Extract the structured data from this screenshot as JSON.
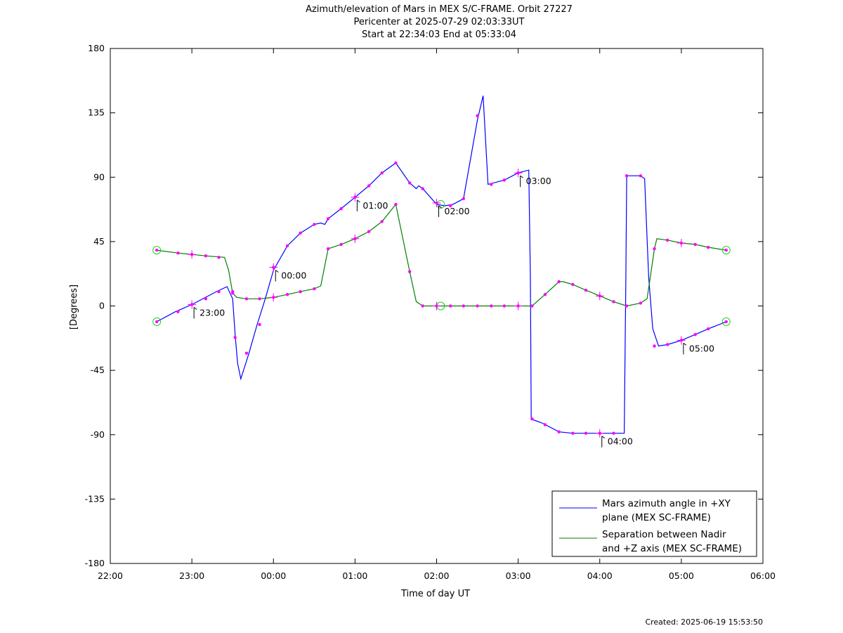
{
  "title_lines": [
    "Azimuth/elevation of Mars in MEX S/C-FRAME.  Orbit 27227",
    "Pericenter at 2025-07-29 02:03:33UT",
    "Start at 22:34:03 End at 05:33:04"
  ],
  "created": "Created: 2025-06-19 15:53:50",
  "chart_data": {
    "type": "line",
    "xlabel": "Time of day UT",
    "ylabel": "[Degrees]",
    "x_unit": "hours since 22:00 UT",
    "xlim": [
      0,
      8
    ],
    "ylim": [
      -180,
      180
    ],
    "x_ticks": [
      0,
      1,
      2,
      3,
      4,
      5,
      6,
      7,
      8
    ],
    "x_tick_labels": [
      "22:00",
      "23:00",
      "00:00",
      "01:00",
      "02:00",
      "03:00",
      "04:00",
      "05:00",
      "06:00"
    ],
    "y_ticks": [
      -180,
      -135,
      -90,
      -45,
      0,
      45,
      90,
      135,
      180
    ],
    "y_tick_labels": [
      "-180",
      "-135",
      "-90",
      "-45",
      "0",
      "45",
      "90",
      "135",
      "180"
    ],
    "grid": false,
    "legend_position": "bottom-right",
    "series": [
      {
        "name": "Mars azimuth angle in +XY plane (MEX SC-FRAME)",
        "legend_lines": [
          "Mars azimuth angle in +XY",
          "plane (MEX SC-FRAME)"
        ],
        "color": "#0000ff",
        "points": [
          [
            0.57,
            -11
          ],
          [
            0.8,
            -4
          ],
          [
            1.0,
            1
          ],
          [
            1.3,
            10
          ],
          [
            1.43,
            13.5
          ],
          [
            1.5,
            5
          ],
          [
            1.53,
            -20
          ],
          [
            1.56,
            -40
          ],
          [
            1.6,
            -51
          ],
          [
            1.7,
            -33
          ],
          [
            1.8,
            -13
          ],
          [
            1.9,
            5
          ],
          [
            2.0,
            25
          ],
          [
            2.17,
            42
          ],
          [
            2.33,
            51
          ],
          [
            2.5,
            57
          ],
          [
            2.58,
            58
          ],
          [
            2.63,
            57
          ],
          [
            2.67,
            61
          ],
          [
            2.83,
            68
          ],
          [
            3.0,
            76
          ],
          [
            3.17,
            84
          ],
          [
            3.33,
            93
          ],
          [
            3.5,
            100
          ],
          [
            3.67,
            86
          ],
          [
            3.75,
            82
          ],
          [
            3.78,
            84
          ],
          [
            3.83,
            82
          ],
          [
            4.0,
            71
          ],
          [
            4.1,
            70
          ],
          [
            4.2,
            71
          ],
          [
            4.33,
            75
          ],
          [
            4.5,
            130
          ],
          [
            4.57,
            147
          ],
          [
            4.63,
            85
          ],
          [
            4.83,
            88
          ],
          [
            5.0,
            93
          ],
          [
            5.13,
            95
          ],
          [
            5.15,
            20
          ],
          [
            5.16,
            -79
          ],
          [
            5.3,
            -82
          ],
          [
            5.5,
            -88
          ],
          [
            5.67,
            -89
          ],
          [
            5.83,
            -89
          ],
          [
            6.0,
            -89
          ],
          [
            6.17,
            -89
          ],
          [
            6.3,
            -89
          ],
          [
            6.32,
            20
          ],
          [
            6.33,
            91
          ],
          [
            6.5,
            91
          ],
          [
            6.55,
            89
          ],
          [
            6.6,
            20
          ],
          [
            6.65,
            -16
          ],
          [
            6.72,
            -28
          ],
          [
            6.83,
            -27
          ],
          [
            7.0,
            -24
          ],
          [
            7.17,
            -20
          ],
          [
            7.33,
            -16
          ],
          [
            7.55,
            -11
          ]
        ],
        "markers": [
          [
            0.57,
            -11
          ],
          [
            0.83,
            -4
          ],
          [
            1.0,
            1
          ],
          [
            1.17,
            5
          ],
          [
            1.33,
            10
          ],
          [
            1.5,
            10
          ],
          [
            1.53,
            -22
          ],
          [
            1.67,
            -33
          ],
          [
            1.83,
            -13
          ],
          [
            2.0,
            27
          ],
          [
            2.17,
            42
          ],
          [
            2.33,
            51
          ],
          [
            2.5,
            57
          ],
          [
            2.67,
            61
          ],
          [
            2.83,
            68
          ],
          [
            3.0,
            76
          ],
          [
            3.17,
            84
          ],
          [
            3.33,
            93
          ],
          [
            3.5,
            100
          ],
          [
            3.67,
            86
          ],
          [
            3.83,
            82
          ],
          [
            4.0,
            72
          ],
          [
            4.17,
            70
          ],
          [
            4.33,
            75
          ],
          [
            4.5,
            133
          ],
          [
            4.67,
            85
          ],
          [
            4.83,
            88
          ],
          [
            5.0,
            93
          ],
          [
            5.17,
            -79
          ],
          [
            5.33,
            -83
          ],
          [
            5.5,
            -88
          ],
          [
            5.67,
            -89
          ],
          [
            5.83,
            -89
          ],
          [
            6.0,
            -89
          ],
          [
            6.17,
            -89
          ],
          [
            6.33,
            91
          ],
          [
            6.5,
            91
          ],
          [
            6.67,
            -28
          ],
          [
            6.83,
            -27
          ],
          [
            7.0,
            -24
          ],
          [
            7.17,
            -20
          ],
          [
            7.33,
            -16
          ],
          [
            7.55,
            -11
          ]
        ]
      },
      {
        "name": "Separation between Nadir and +Z axis (MEX SC-FRAME)",
        "legend_lines": [
          "Separation between Nadir",
          "and +Z axis (MEX SC-FRAME)"
        ],
        "color": "#008000",
        "points": [
          [
            0.57,
            39
          ],
          [
            0.83,
            37
          ],
          [
            1.0,
            36
          ],
          [
            1.17,
            35
          ],
          [
            1.4,
            34
          ],
          [
            1.45,
            25
          ],
          [
            1.5,
            9
          ],
          [
            1.55,
            6
          ],
          [
            1.67,
            5
          ],
          [
            1.83,
            5
          ],
          [
            2.0,
            6
          ],
          [
            2.17,
            8
          ],
          [
            2.33,
            10
          ],
          [
            2.5,
            12
          ],
          [
            2.58,
            14
          ],
          [
            2.67,
            40
          ],
          [
            2.83,
            43
          ],
          [
            3.0,
            47
          ],
          [
            3.17,
            52
          ],
          [
            3.33,
            59
          ],
          [
            3.5,
            71
          ],
          [
            3.67,
            24
          ],
          [
            3.75,
            3
          ],
          [
            3.83,
            0
          ],
          [
            4.0,
            0
          ],
          [
            4.17,
            0
          ],
          [
            4.33,
            0
          ],
          [
            4.5,
            0
          ],
          [
            4.67,
            0
          ],
          [
            4.83,
            0
          ],
          [
            5.0,
            0
          ],
          [
            5.17,
            0
          ],
          [
            5.33,
            8
          ],
          [
            5.5,
            17
          ],
          [
            5.55,
            17
          ],
          [
            5.67,
            15
          ],
          [
            5.83,
            11
          ],
          [
            6.0,
            7
          ],
          [
            6.17,
            3
          ],
          [
            6.33,
            0
          ],
          [
            6.5,
            2
          ],
          [
            6.58,
            5
          ],
          [
            6.67,
            40
          ],
          [
            6.7,
            47
          ],
          [
            6.83,
            46
          ],
          [
            7.0,
            44
          ],
          [
            7.17,
            43
          ],
          [
            7.33,
            41
          ],
          [
            7.55,
            39
          ]
        ],
        "markers": [
          [
            0.57,
            39
          ],
          [
            0.83,
            37
          ],
          [
            1.0,
            36
          ],
          [
            1.17,
            35
          ],
          [
            1.33,
            34
          ],
          [
            1.5,
            9
          ],
          [
            1.67,
            5
          ],
          [
            1.83,
            5
          ],
          [
            2.0,
            6
          ],
          [
            2.17,
            8
          ],
          [
            2.33,
            10
          ],
          [
            2.5,
            12
          ],
          [
            2.67,
            40
          ],
          [
            2.83,
            43
          ],
          [
            3.0,
            47
          ],
          [
            3.17,
            52
          ],
          [
            3.33,
            59
          ],
          [
            3.5,
            71
          ],
          [
            3.67,
            24
          ],
          [
            3.83,
            0
          ],
          [
            4.0,
            0
          ],
          [
            4.17,
            0
          ],
          [
            4.33,
            0
          ],
          [
            4.5,
            0
          ],
          [
            4.67,
            0
          ],
          [
            4.83,
            0
          ],
          [
            5.0,
            0
          ],
          [
            5.17,
            0
          ],
          [
            5.33,
            8
          ],
          [
            5.5,
            17
          ],
          [
            5.67,
            15
          ],
          [
            5.83,
            11
          ],
          [
            6.0,
            7
          ],
          [
            6.17,
            3
          ],
          [
            6.33,
            0
          ],
          [
            6.5,
            2
          ],
          [
            6.67,
            40
          ],
          [
            6.83,
            46
          ],
          [
            7.0,
            44
          ],
          [
            7.17,
            43
          ],
          [
            7.33,
            41
          ],
          [
            7.55,
            39
          ]
        ]
      }
    ],
    "start_end_circles": [
      [
        0.57,
        -11
      ],
      [
        0.57,
        39
      ],
      [
        7.55,
        -11
      ],
      [
        7.55,
        39
      ],
      [
        4.05,
        71
      ],
      [
        4.05,
        0
      ]
    ],
    "hour_crosses": [
      [
        1.0,
        1
      ],
      [
        1.0,
        36
      ],
      [
        2.0,
        27
      ],
      [
        2.0,
        6
      ],
      [
        3.0,
        76
      ],
      [
        3.0,
        47
      ],
      [
        4.0,
        72
      ],
      [
        4.0,
        0
      ],
      [
        5.0,
        93
      ],
      [
        5.0,
        0
      ],
      [
        6.0,
        -89
      ],
      [
        6.0,
        7
      ],
      [
        7.0,
        -24
      ],
      [
        7.0,
        44
      ]
    ],
    "hour_annotations": [
      {
        "x": 1.0,
        "y": 1,
        "label": "23:00"
      },
      {
        "x": 2.0,
        "y": 27,
        "label": "00:00"
      },
      {
        "x": 3.0,
        "y": 76,
        "label": "01:00"
      },
      {
        "x": 4.0,
        "y": 72,
        "label": "02:00"
      },
      {
        "x": 5.0,
        "y": 93,
        "label": "03:00"
      },
      {
        "x": 6.0,
        "y": -89,
        "label": "04:00"
      },
      {
        "x": 7.0,
        "y": -24,
        "label": "05:00"
      }
    ]
  }
}
